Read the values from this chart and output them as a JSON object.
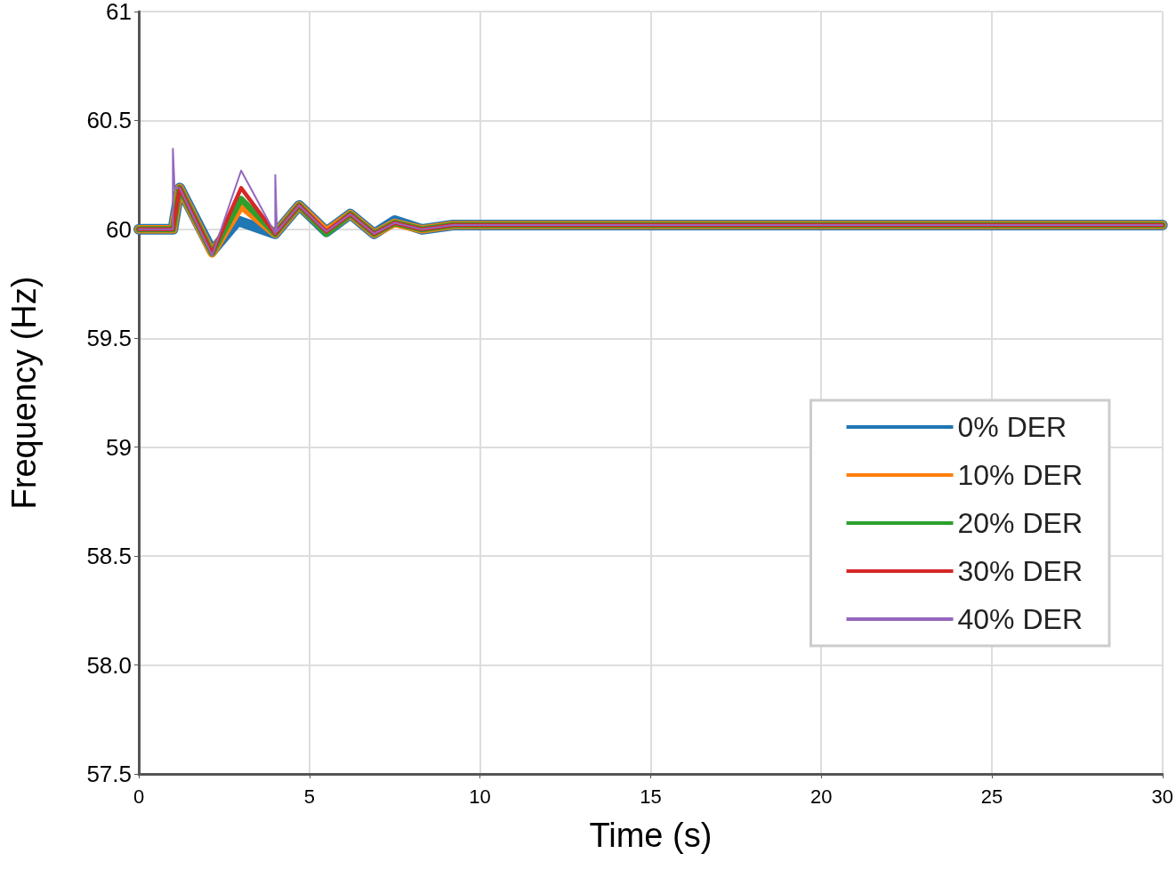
{
  "chart_data": {
    "type": "line",
    "xlabel": "Time (s)",
    "ylabel": "Frequency (Hz)",
    "xlim": [
      0,
      30
    ],
    "xticks": [
      0,
      5,
      10,
      15,
      20,
      25,
      30
    ],
    "ylim": [
      57.5,
      61
    ],
    "yticks": [
      57.5,
      {
        "value": 58,
        "label": "58.0"
      },
      58.5,
      59,
      59.5,
      60,
      60.5,
      61
    ],
    "grid": true,
    "legend": "right",
    "line_style": "solid",
    "marker": "none",
    "series": [
      {
        "name": "0% DER",
        "color": "#1f77b4",
        "x": [
          0,
          1,
          1.2,
          2.15,
          2.9,
          4.0,
          4.7,
          5.5,
          6.2,
          6.9,
          7.5,
          8.3,
          9.2,
          10,
          30
        ],
        "values": [
          60,
          60,
          60.19,
          59.9,
          60.04,
          59.98,
          60.11,
          59.99,
          60.07,
          59.98,
          60.04,
          60.0,
          60.02,
          60.02,
          60.02
        ]
      },
      {
        "name": "10% DER",
        "color": "#ff7f0e",
        "x": [
          0,
          1,
          1.2,
          2.15,
          3.0,
          4.0,
          4.7,
          5.5,
          6.2,
          6.9,
          7.5,
          8.3,
          9.2,
          10,
          30
        ],
        "values": [
          60,
          60,
          60.19,
          59.89,
          60.11,
          59.98,
          60.11,
          59.99,
          60.07,
          59.98,
          60.03,
          60.0,
          60.02,
          60.02,
          60.02
        ]
      },
      {
        "name": "20% DER",
        "color": "#2ca02c",
        "x": [
          0,
          1,
          1.2,
          2.15,
          3.0,
          4.0,
          4.7,
          5.5,
          6.2,
          6.9,
          7.5,
          8.3,
          9.2,
          10,
          30
        ],
        "values": [
          60,
          60,
          60.19,
          59.89,
          60.14,
          59.98,
          60.11,
          59.98,
          60.07,
          59.98,
          60.03,
          60.0,
          60.02,
          60.02,
          60.02
        ]
      },
      {
        "name": "30% DER",
        "color": "#d62728",
        "x": [
          0,
          1,
          1.2,
          2.15,
          3.0,
          4.0,
          4.7,
          5.5,
          6.2,
          6.9,
          7.5,
          8.3,
          9.2,
          10,
          30
        ],
        "values": [
          60,
          60,
          60.19,
          59.89,
          60.19,
          59.98,
          60.11,
          59.99,
          60.07,
          59.98,
          60.03,
          60.0,
          60.02,
          60.02,
          60.02
        ]
      },
      {
        "name": "40% DER",
        "color": "#9467bd",
        "x": [
          0,
          1,
          1,
          1.05,
          1.2,
          2.15,
          3.0,
          4.0,
          4.0,
          4.05,
          4.7,
          5.5,
          6.2,
          6.9,
          7.5,
          8.3,
          9.2,
          10,
          30
        ],
        "values": [
          60,
          60,
          60.37,
          60.19,
          60.19,
          59.88,
          60.27,
          59.98,
          60.25,
          59.99,
          60.11,
          59.99,
          60.07,
          59.98,
          60.03,
          60.0,
          60.02,
          60.02,
          60.02
        ]
      }
    ]
  }
}
